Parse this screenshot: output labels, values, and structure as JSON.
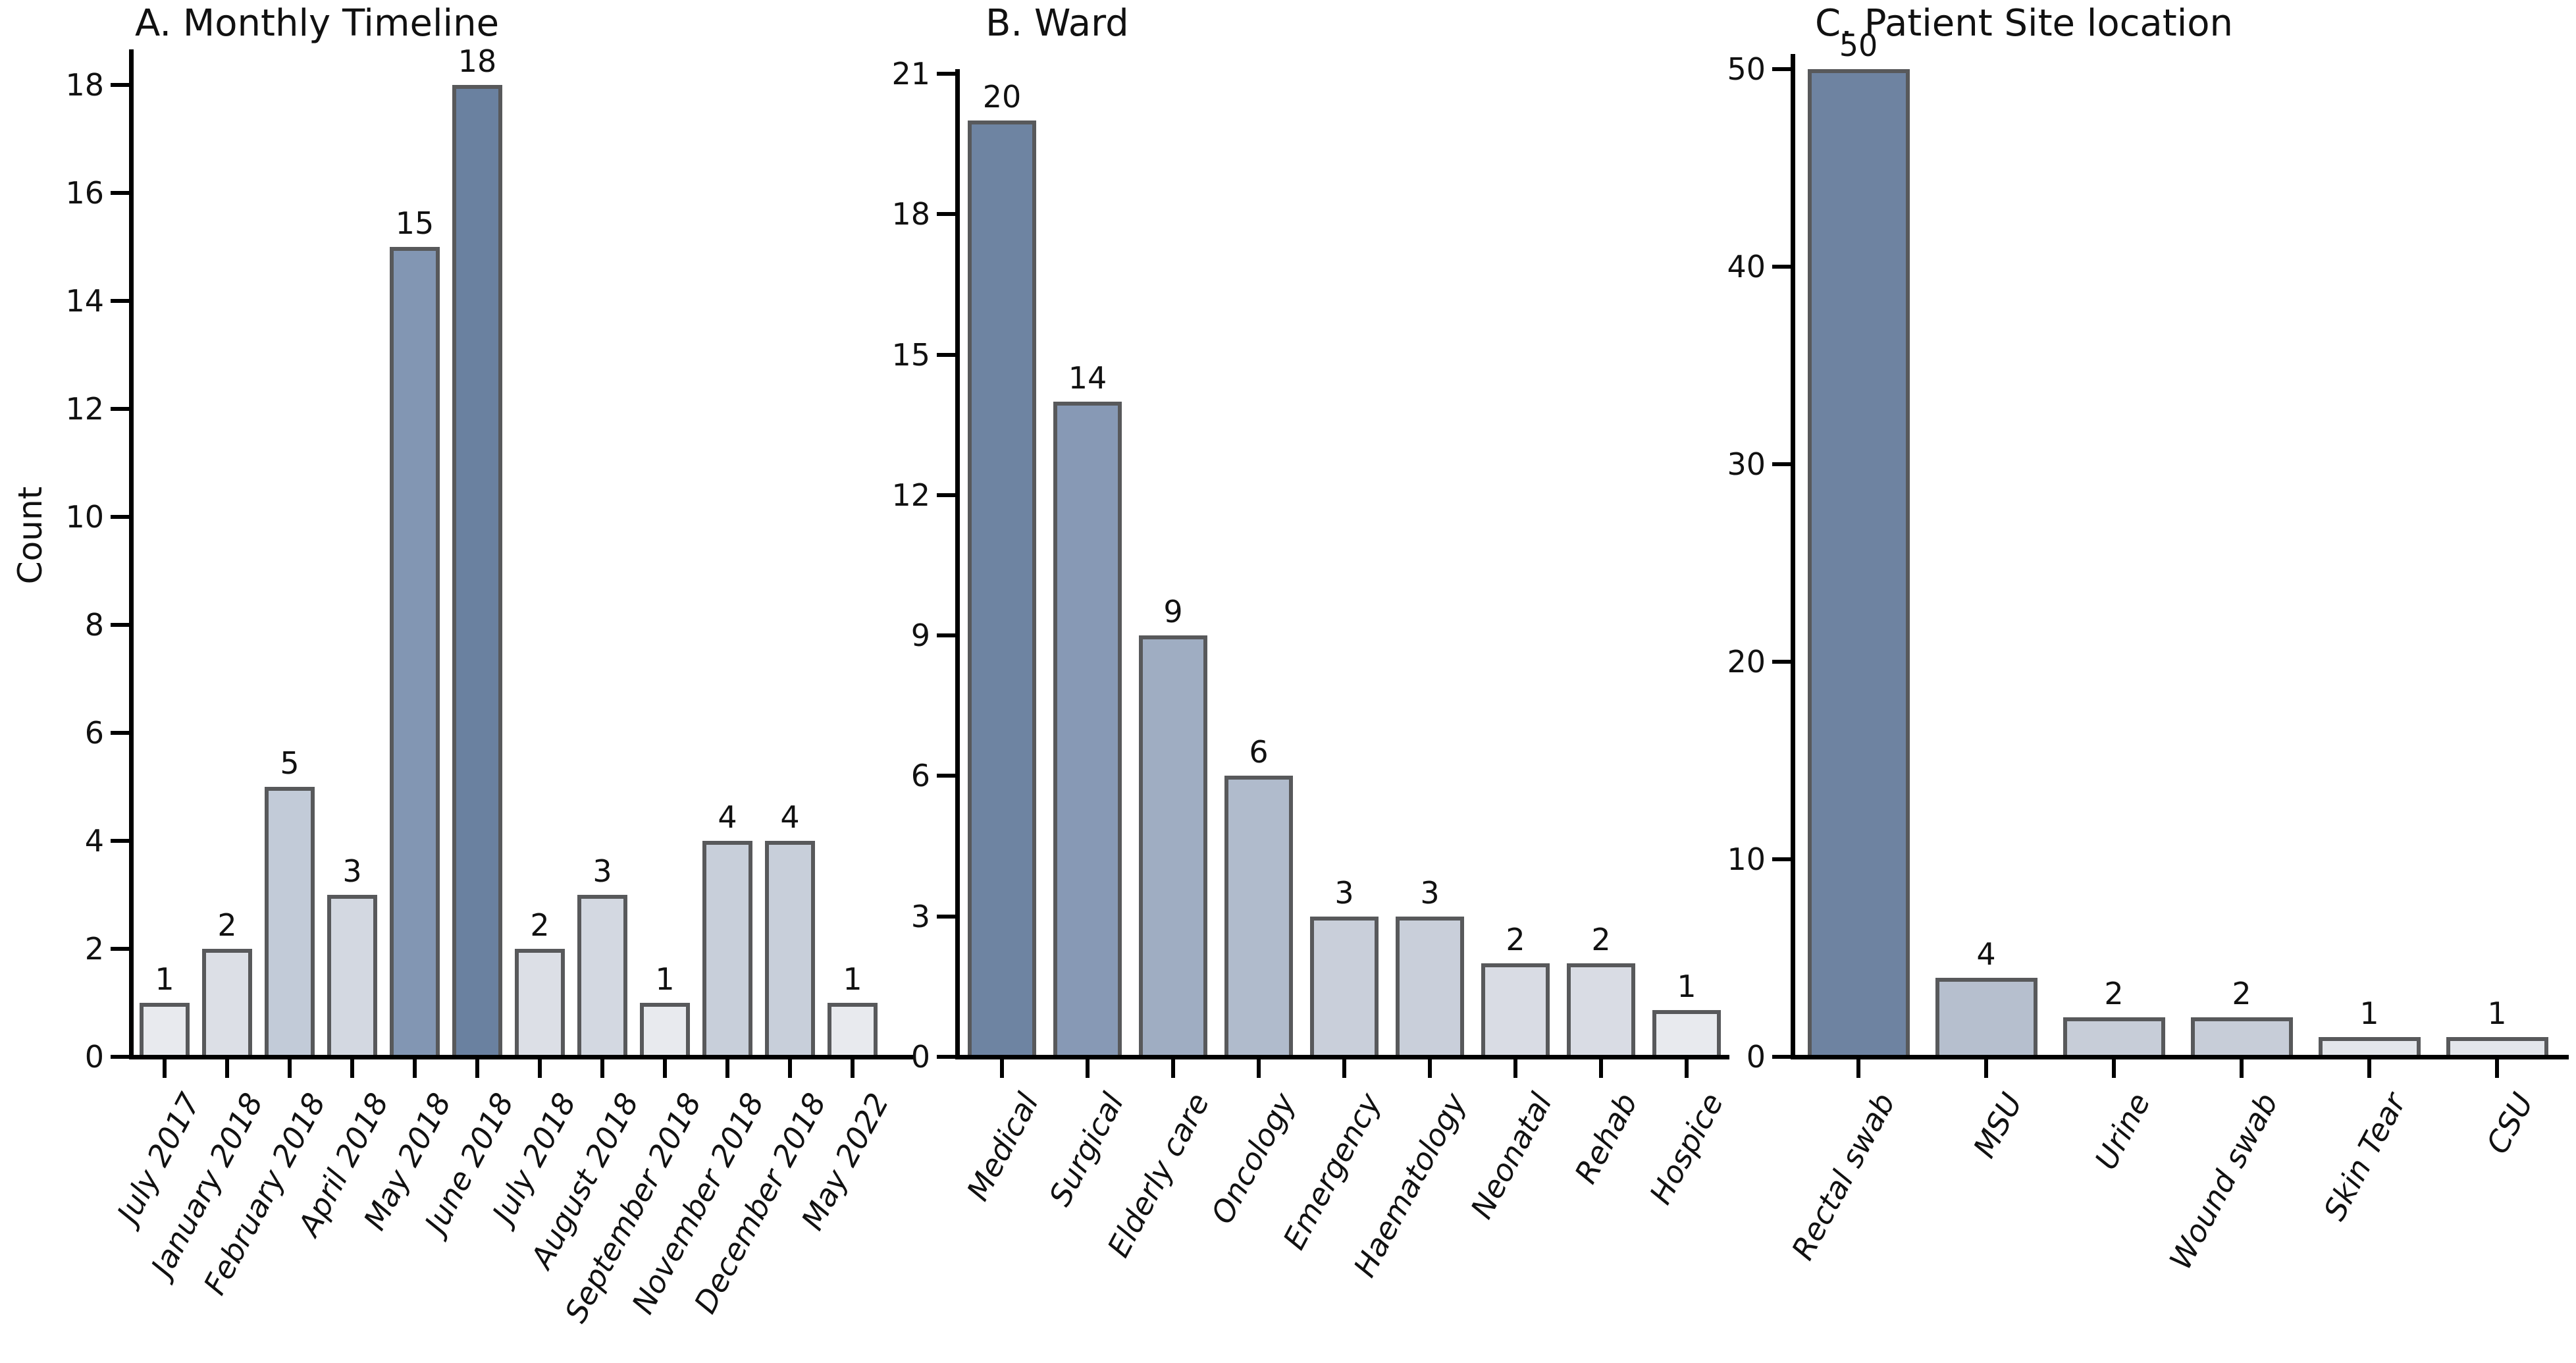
{
  "figure": {
    "background": "#ffffff",
    "axis_color": "#000000",
    "text_color": "#111111",
    "bar_border_color": "#58595b"
  },
  "chart_data": [
    {
      "type": "bar",
      "panel": "A",
      "title": "A. Monthly Timeline",
      "ylabel": "Count",
      "xlabel": "",
      "ylim": [
        0,
        18
      ],
      "yticks": [
        0,
        2,
        4,
        6,
        8,
        10,
        12,
        14,
        16,
        18
      ],
      "grid": false,
      "legend": "none",
      "categories": [
        "July 2017",
        "January 2018",
        "February 2018",
        "April 2018",
        "May 2018",
        "June 2018",
        "July 2018",
        "August 2018",
        "September 2018",
        "November 2018",
        "December 2018",
        "May 2022"
      ],
      "values": [
        1,
        2,
        5,
        3,
        15,
        18,
        2,
        3,
        1,
        4,
        4,
        1
      ],
      "bar_colors": [
        "#e8eaee",
        "#dcdfe6",
        "#c2cbd8",
        "#d3d8e1",
        "#8296b3",
        "#6a81a0",
        "#dcdfe6",
        "#d3d8e1",
        "#e8eaee",
        "#c8cfda",
        "#c8cfda",
        "#e8eaee"
      ]
    },
    {
      "type": "bar",
      "panel": "B",
      "title": "B. Ward",
      "ylabel": "",
      "xlabel": "",
      "ylim": [
        0,
        21
      ],
      "yticks": [
        0,
        3,
        6,
        9,
        12,
        15,
        18,
        21
      ],
      "grid": false,
      "legend": "none",
      "categories": [
        "Medical",
        "Surgical",
        "Elderly care",
        "Oncology",
        "Emergency",
        "Haematology",
        "Neonatal",
        "Rehab",
        "Hospice"
      ],
      "values": [
        20,
        14,
        9,
        6,
        3,
        3,
        2,
        2,
        1
      ],
      "bar_colors": [
        "#6e84a2",
        "#8799b5",
        "#9fadc2",
        "#b0bbcc",
        "#c9cfda",
        "#c9cfda",
        "#d9dce4",
        "#d9dce4",
        "#e8eaee"
      ]
    },
    {
      "type": "bar",
      "panel": "C",
      "title": "C. Patient Site location",
      "ylabel": "",
      "xlabel": "",
      "ylim": [
        0,
        50
      ],
      "yticks": [
        0,
        10,
        20,
        30,
        40,
        50
      ],
      "grid": false,
      "legend": "none",
      "categories": [
        "Rectal swab",
        "MSU",
        "Urine",
        "Wound swab",
        "Skin Tear",
        "CSU"
      ],
      "values": [
        50,
        4,
        2,
        2,
        1,
        1
      ],
      "bar_colors": [
        "#6e83a1",
        "#b6bfce",
        "#c7cdd8",
        "#c7cdd8",
        "#e3e6eb",
        "#e3e6eb"
      ]
    }
  ]
}
